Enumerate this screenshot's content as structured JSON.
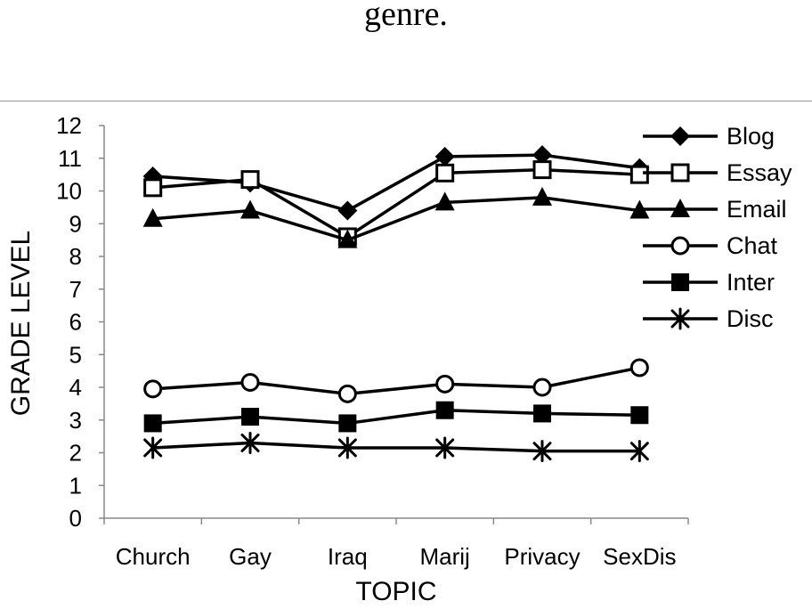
{
  "caption": "genre.",
  "chart_data": {
    "type": "line",
    "title": "",
    "xlabel": "TOPIC",
    "ylabel": "GRADE LEVEL",
    "categories": [
      "Church",
      "Gay",
      "Iraq",
      "Marij",
      "Privacy",
      "SexDis"
    ],
    "ylim": [
      0,
      12
    ],
    "yticks": [
      0,
      1,
      2,
      3,
      4,
      5,
      6,
      7,
      8,
      9,
      10,
      11,
      12
    ],
    "legend_position": "top-right",
    "grid": false,
    "series": [
      {
        "name": "Blog",
        "marker": "diamond",
        "values": [
          10.45,
          10.25,
          9.4,
          11.05,
          11.1,
          10.7
        ]
      },
      {
        "name": "Essay",
        "marker": "square-open",
        "values": [
          10.1,
          10.35,
          8.6,
          10.55,
          10.65,
          10.5
        ]
      },
      {
        "name": "Email",
        "marker": "triangle",
        "values": [
          9.15,
          9.4,
          8.5,
          9.65,
          9.8,
          9.4
        ]
      },
      {
        "name": "Chat",
        "marker": "circle-open",
        "values": [
          3.95,
          4.15,
          3.8,
          4.1,
          4.0,
          4.6
        ]
      },
      {
        "name": "Inter",
        "marker": "square",
        "values": [
          2.9,
          3.1,
          2.9,
          3.3,
          3.2,
          3.15
        ]
      },
      {
        "name": "Disc",
        "marker": "asterisk",
        "values": [
          2.15,
          2.3,
          2.15,
          2.15,
          2.05,
          2.05
        ]
      }
    ]
  }
}
